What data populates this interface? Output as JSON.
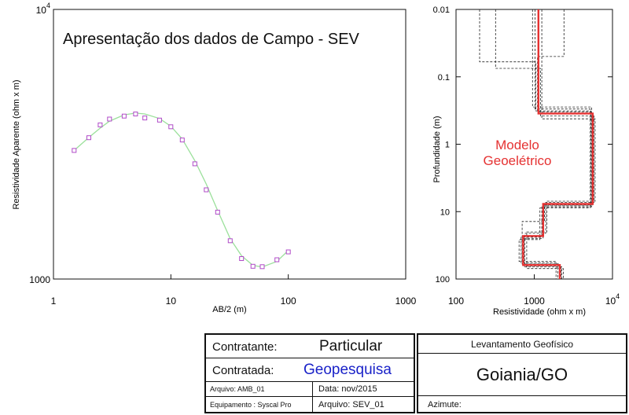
{
  "chart_data": [
    {
      "type": "line",
      "title": "Apresentação dos dados de Campo - SEV",
      "xlabel": "AB/2 (m)",
      "ylabel": "Resistividade Aparente (ohm x m)",
      "xscale": "log",
      "yscale": "log",
      "xlim": [
        1,
        1000
      ],
      "ylim": [
        1000,
        10000
      ],
      "x_ticks": [
        {
          "v": 1,
          "label": "1"
        },
        {
          "v": 10,
          "label": "10"
        },
        {
          "v": 100,
          "label": "100"
        },
        {
          "v": 1000,
          "label": "1000"
        }
      ],
      "y_ticks": [
        {
          "v": 1000,
          "base": "1000",
          "exp": ""
        },
        {
          "v": 10000,
          "base": "10",
          "exp": "4"
        }
      ],
      "series": [
        {
          "kind": "points",
          "color": "#b04bc8",
          "x": [
            1.5,
            2.0,
            2.5,
            3.0,
            4.0,
            5.0,
            6.0,
            8.0,
            10.0,
            12.5,
            16.0,
            20.0,
            25.0,
            32.0,
            40.0,
            50.0,
            60.0,
            80.0,
            100.0
          ],
          "y": [
            2999,
            3344,
            3729,
            3919,
            4022,
            4096,
            3958,
            3885,
            3671,
            3280,
            2675,
            2143,
            1770,
            1387,
            1191,
            1115,
            1111,
            1179,
            1261
          ]
        },
        {
          "kind": "curve",
          "color": "#9be09b",
          "x": [
            1.5,
            2.0,
            2.5,
            3.0,
            4.0,
            5.0,
            6.0,
            8.0,
            10.0,
            12.5,
            16.0,
            20.0,
            25.0,
            32.0,
            40.0,
            50.0,
            60.0,
            80.0,
            100.0
          ],
          "y": [
            2999,
            3351,
            3630,
            3851,
            4064,
            4124,
            4096,
            3938,
            3687,
            3305,
            2748,
            2252,
            1794,
            1411,
            1220,
            1124,
            1108,
            1162,
            1277
          ]
        }
      ]
    },
    {
      "type": "line",
      "xlabel": "Resistividade (ohm x m)",
      "ylabel": "Profundidade (m)",
      "xscale": "log",
      "yscale": "log",
      "y_inverted": true,
      "xlim": [
        100,
        10000
      ],
      "ylim": [
        0.01,
        100
      ],
      "x_ticks": [
        {
          "v": 100,
          "base": "100",
          "exp": ""
        },
        {
          "v": 1000,
          "base": "1000",
          "exp": ""
        },
        {
          "v": 10000,
          "base": "10",
          "exp": "4"
        }
      ],
      "y_ticks": [
        {
          "v": 0.01,
          "label": "0.01"
        },
        {
          "v": 0.1,
          "label": "0.1"
        },
        {
          "v": 1,
          "label": "1"
        },
        {
          "v": 10,
          "label": "10"
        },
        {
          "v": 100,
          "label": "100"
        }
      ],
      "annotation": [
        "Modelo",
        "Geoelétrico"
      ],
      "model": {
        "name": "Modelo Geoelétrico",
        "color": "#e53232",
        "layers": [
          {
            "rho": 1130,
            "top": 0.01,
            "bottom": 0.35
          },
          {
            "rho": 5600,
            "top": 0.35,
            "bottom": 7.7
          },
          {
            "rho": 1300,
            "top": 7.7,
            "bottom": 23
          },
          {
            "rho": 720,
            "top": 23,
            "bottom": 62
          },
          {
            "rho": 2120,
            "top": 62,
            "bottom": 100
          }
        ]
      },
      "equivalent_models": [
        {
          "layers": [
            {
              "rho": 200,
              "top": 0.01,
              "bottom": 0.06
            },
            {
              "rho": 1050,
              "top": 0.06,
              "bottom": 0.32
            },
            {
              "rho": 5300,
              "top": 0.32,
              "bottom": 8.2
            },
            {
              "rho": 1250,
              "top": 8.2,
              "bottom": 24
            },
            {
              "rho": 680,
              "top": 24,
              "bottom": 58
            },
            {
              "rho": 2000,
              "top": 58,
              "bottom": 100
            }
          ]
        },
        {
          "layers": [
            {
              "rho": 320,
              "top": 0.01,
              "bottom": 0.075
            },
            {
              "rho": 1200,
              "top": 0.075,
              "bottom": 0.38
            },
            {
              "rho": 5800,
              "top": 0.38,
              "bottom": 7.3
            },
            {
              "rho": 1400,
              "top": 7.3,
              "bottom": 21
            },
            {
              "rho": 760,
              "top": 21,
              "bottom": 66
            },
            {
              "rho": 2250,
              "top": 66,
              "bottom": 100
            }
          ]
        },
        {
          "layers": [
            {
              "rho": 1020,
              "top": 0.01,
              "bottom": 0.3
            },
            {
              "rho": 5200,
              "top": 0.3,
              "bottom": 8.8
            },
            {
              "rho": 1180,
              "top": 8.8,
              "bottom": 26
            },
            {
              "rho": 640,
              "top": 26,
              "bottom": 55
            },
            {
              "rho": 1900,
              "top": 55,
              "bottom": 100
            }
          ]
        },
        {
          "layers": [
            {
              "rho": 1250,
              "top": 0.01,
              "bottom": 0.42
            },
            {
              "rho": 6000,
              "top": 0.42,
              "bottom": 7.0
            },
            {
              "rho": 1450,
              "top": 7.0,
              "bottom": 20
            },
            {
              "rho": 800,
              "top": 20,
              "bottom": 70
            },
            {
              "rho": 2350,
              "top": 70,
              "bottom": 100
            }
          ]
        },
        {
          "layers": [
            {
              "rho": 2400,
              "top": 0.01,
              "bottom": 0.05
            },
            {
              "rho": 1100,
              "top": 0.05,
              "bottom": 0.33
            },
            {
              "rho": 5500,
              "top": 0.33,
              "bottom": 8.0
            },
            {
              "rho": 1350,
              "top": 8.0,
              "bottom": 14
            },
            {
              "rho": 700,
              "top": 14,
              "bottom": 60
            },
            {
              "rho": 2100,
              "top": 60,
              "bottom": 100
            }
          ]
        },
        {
          "layers": [
            {
              "rho": 950,
              "top": 0.01,
              "bottom": 0.28
            },
            {
              "rho": 5400,
              "top": 0.28,
              "bottom": 8.5
            },
            {
              "rho": 1300,
              "top": 8.5,
              "bottom": 25
            },
            {
              "rho": 740,
              "top": 25,
              "bottom": 64
            },
            {
              "rho": 2200,
              "top": 64,
              "bottom": 100
            }
          ]
        }
      ]
    }
  ],
  "title_block": {
    "contratante_label": "Contratante:",
    "contratante_value": "Particular",
    "contratada_label": "Contratada:",
    "contratada_value": "Geopesquisa",
    "arquivo_amb": "Arquivo: AMB_01",
    "data": "Data: nov/2015",
    "equipamento": "Equipamento : Syscal Pro",
    "arquivo_sev": "Arquivo: SEV_01",
    "levantamento": "Levantamento Geofísico",
    "local": "Goiania/GO",
    "azimute": "Azimute:",
    "accent_color": "#1a22c8"
  }
}
